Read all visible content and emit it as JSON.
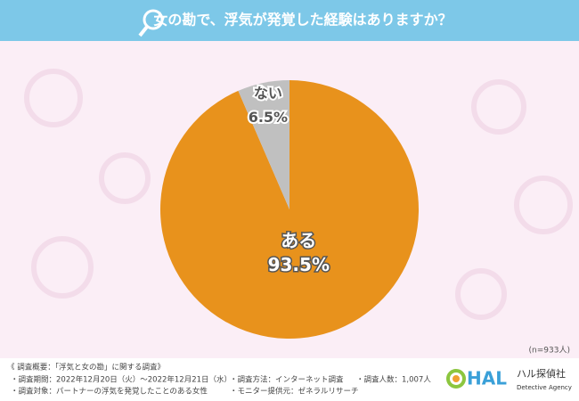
{
  "chart_data": {
    "type": "pie",
    "title": "女の勘で、浮気が発覚した経験はありますか？",
    "categories": [
      "ある",
      "ない"
    ],
    "values": [
      93.5,
      6.5
    ],
    "value_labels": [
      "93.5%",
      "6.5%"
    ],
    "colors": [
      "#e8921c",
      "#c0c0c0"
    ],
    "sample_note": "(n=933人)"
  },
  "footer": {
    "heading": "《 調査概要：「浮気と女の勘」に関する調査》",
    "items": [
      "・調査期間：2022年12月20日（火）～2022年12月21日（水）",
      "・調査方法：インターネット調査",
      "・調査人数：1,007人",
      "・調査対象：パートナーの浮気を発覚したことのある女性",
      "・モニター提供元：ゼネラルリサーチ"
    ]
  },
  "logo": {
    "mark": "HAL",
    "name": "ハル探偵社",
    "sub": "Detective Agency"
  }
}
